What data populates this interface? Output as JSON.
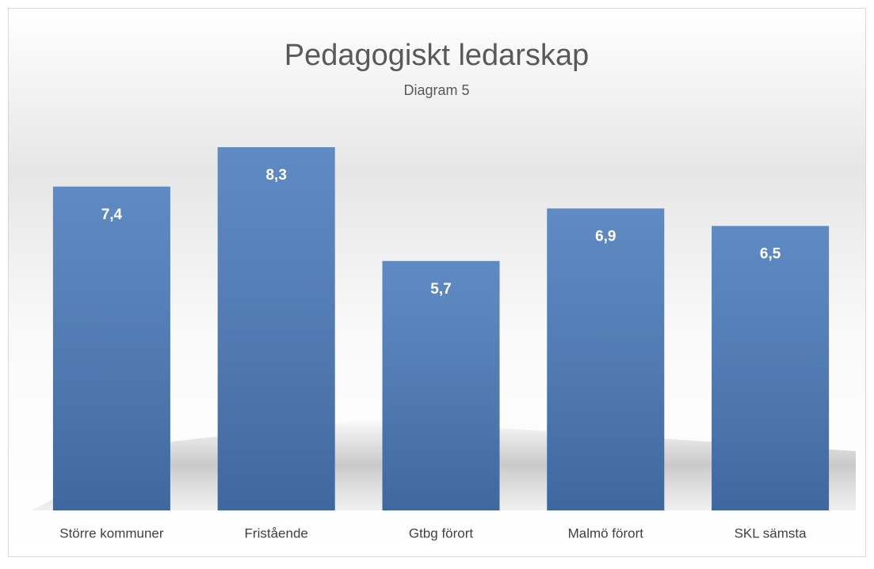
{
  "chart_data": {
    "type": "bar",
    "title": "Pedagogiskt ledarskap",
    "subtitle": "Diagram 5",
    "categories": [
      "Större kommuner",
      "Fristående",
      "Gtbg förort",
      "Malmö förort",
      "SKL sämsta"
    ],
    "values": [
      7.4,
      8.3,
      5.7,
      6.9,
      6.5
    ],
    "value_labels": [
      "7,4",
      "8,3",
      "5,7",
      "6,9",
      "6,5"
    ],
    "color": "#4a7aba"
  }
}
